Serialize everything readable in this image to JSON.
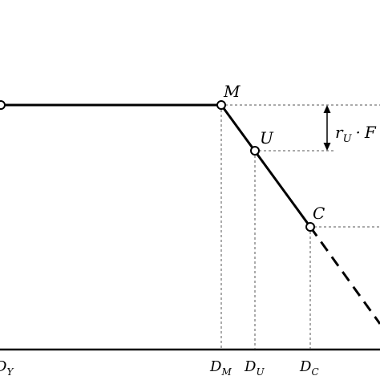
{
  "points": {
    "M": {
      "label": "M"
    },
    "U": {
      "label": "U"
    },
    "C": {
      "label": "C"
    }
  },
  "axis_labels": {
    "dy": {
      "main": "D",
      "sub": "Y"
    },
    "dm": {
      "main": "D",
      "sub": "M"
    },
    "du": {
      "main": "D",
      "sub": "U"
    },
    "dc": {
      "main": "D",
      "sub": "C"
    }
  },
  "dimension": {
    "r_main": "r",
    "r_sub": "U",
    "operator": "·",
    "f_main": "F"
  }
}
